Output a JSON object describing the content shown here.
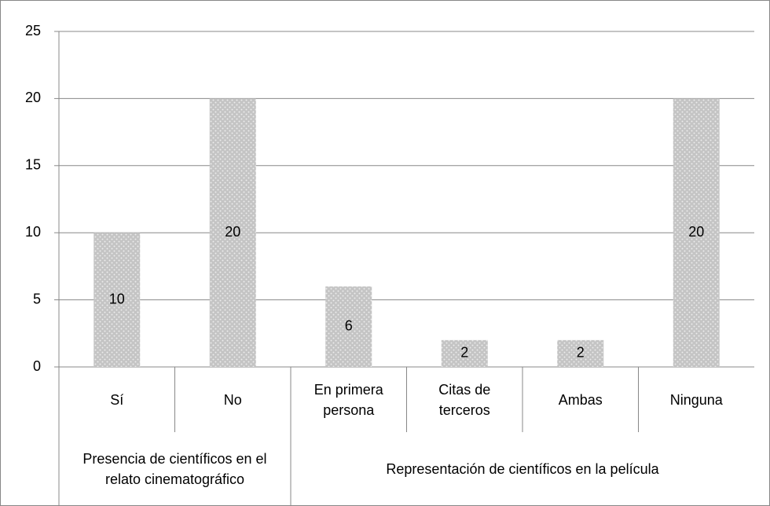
{
  "chart_data": {
    "type": "bar",
    "groups": [
      {
        "label": "Presencia de científicos en el relato cinematográfico",
        "categories": [
          "Sí",
          "No"
        ],
        "values": [
          10,
          20
        ]
      },
      {
        "label": "Representación de científicos en la película",
        "categories": [
          "En primera persona",
          "Citas de terceros",
          "Ambas",
          "Ninguna"
        ],
        "values": [
          6,
          2,
          2,
          20
        ]
      }
    ],
    "color": "#c4c4c4",
    "ylim": [
      0,
      25
    ],
    "yticks": [
      0,
      5,
      10,
      15,
      20,
      25
    ],
    "grid": true
  }
}
